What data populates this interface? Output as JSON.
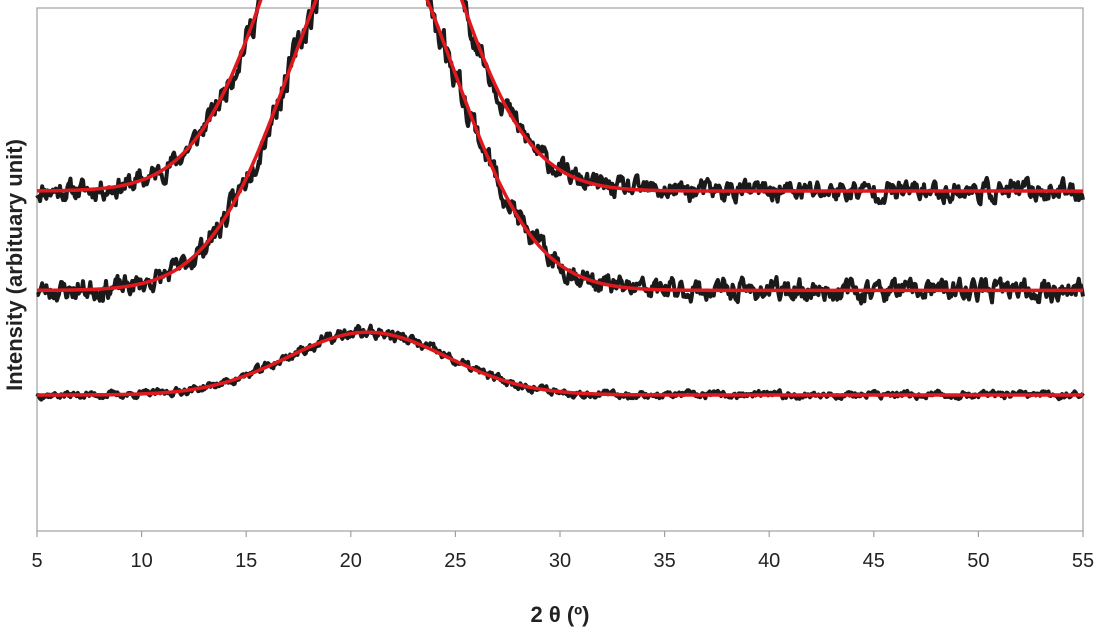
{
  "chart_data": {
    "type": "line",
    "title": "",
    "xlabel": "2 θ (º)",
    "ylabel": "Intensity (arbituary unit)",
    "xlim": [
      5,
      55
    ],
    "xticks": [
      5,
      10,
      15,
      20,
      25,
      30,
      35,
      40,
      45,
      50,
      55
    ],
    "ylim": [
      0,
      1
    ],
    "grid": false,
    "legend": "none",
    "colors": {
      "data": "#1a1a1a",
      "fit": "#e0191e",
      "axis": "#a0a0a0"
    },
    "series": [
      {
        "role": "data",
        "baseline": 0.65,
        "amplitude": 0.78,
        "center": 20.5,
        "sigma": 3.9,
        "noise": 0.035,
        "seed": 11
      },
      {
        "role": "fit",
        "baseline": 0.65,
        "amplitude": 0.78,
        "center": 20.5,
        "sigma": 3.9
      },
      {
        "role": "data",
        "baseline": 0.46,
        "amplitude": 0.7,
        "center": 21.0,
        "sigma": 3.9,
        "noise": 0.035,
        "seed": 23
      },
      {
        "role": "fit",
        "baseline": 0.46,
        "amplitude": 0.7,
        "center": 21.0,
        "sigma": 3.9
      },
      {
        "role": "data",
        "baseline": 0.26,
        "amplitude": 0.12,
        "center": 20.8,
        "sigma": 3.8,
        "noise": 0.012,
        "seed": 37
      },
      {
        "role": "fit",
        "baseline": 0.26,
        "amplitude": 0.12,
        "center": 20.8,
        "sigma": 3.8
      }
    ]
  }
}
